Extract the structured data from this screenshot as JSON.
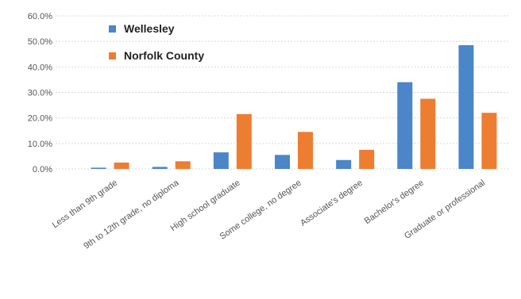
{
  "chart_data": {
    "type": "bar",
    "title": "",
    "xlabel": "",
    "ylabel": "",
    "categories": [
      "Less than 9th grade",
      "9th to 12th grade, no diploma",
      "High school graduate",
      "Some college, no degree",
      "Associate's degree",
      "Bachelor's degree",
      "Graduate or professional"
    ],
    "series": [
      {
        "name": "Wellesley",
        "color": "#4a86c8",
        "values": [
          0.5,
          0.8,
          6.5,
          5.5,
          3.5,
          34.0,
          48.5
        ]
      },
      {
        "name": "Norfolk County",
        "color": "#ed7d31",
        "values": [
          2.5,
          3.0,
          21.5,
          14.5,
          7.5,
          27.5,
          22.0
        ]
      }
    ],
    "ylim": [
      0,
      60
    ],
    "y_ticks": [
      "0.0%",
      "10.0%",
      "20.0%",
      "30.0%",
      "40.0%",
      "50.0%",
      "60.0%"
    ],
    "grid": true,
    "legend_position": "top-left"
  }
}
